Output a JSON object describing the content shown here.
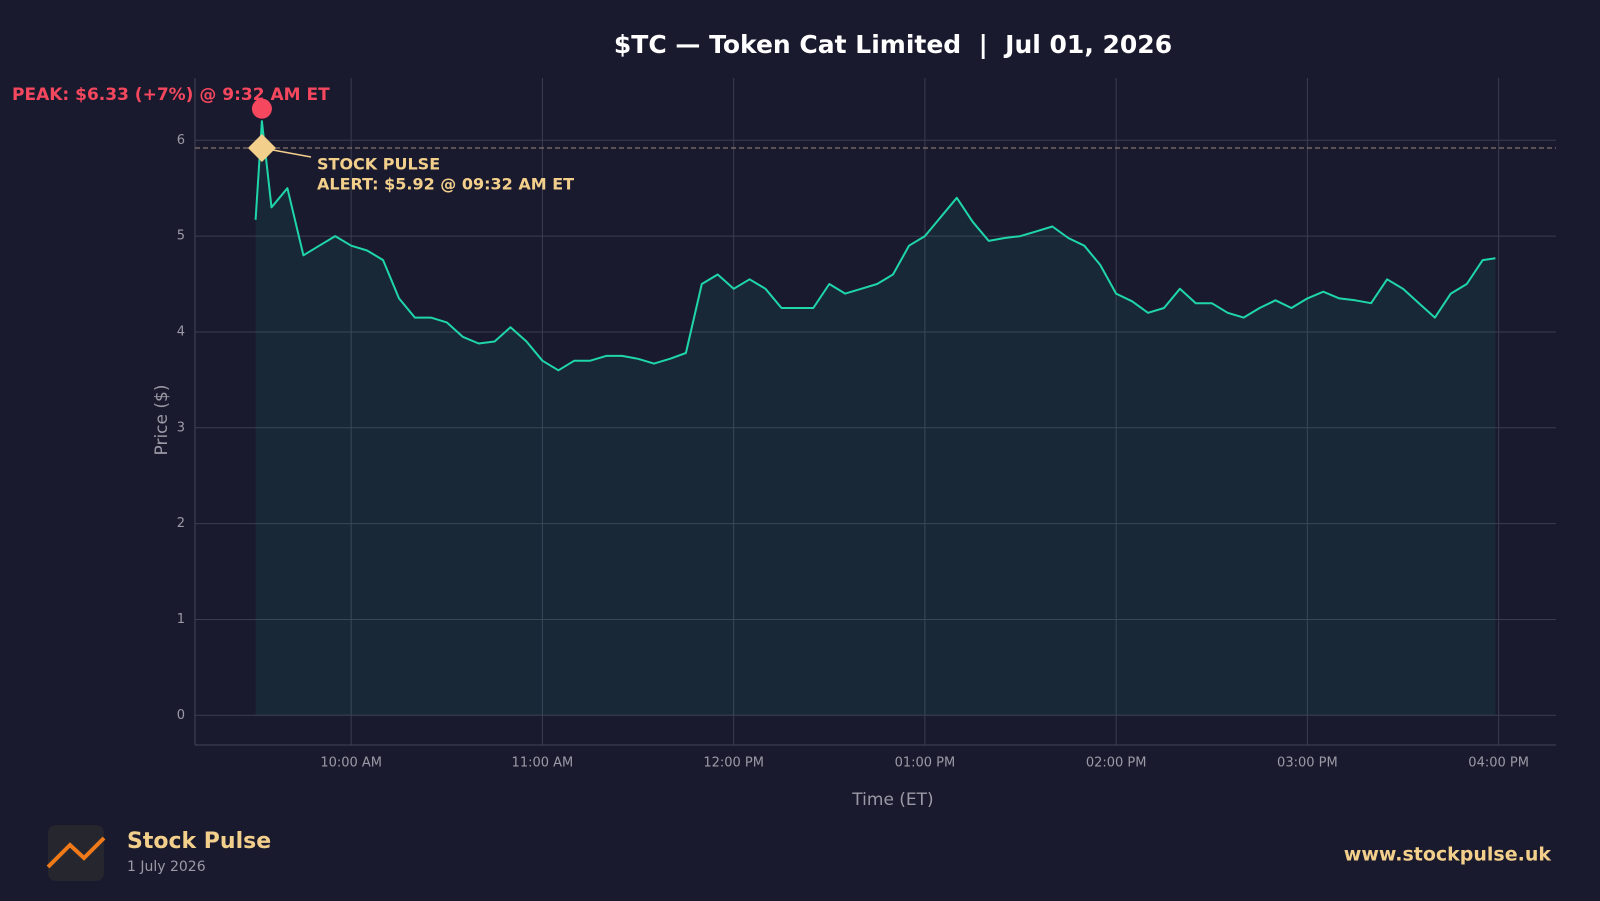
{
  "chart_data": {
    "type": "line",
    "title": "$TC — Token Cat Limited  |  Jul 01, 2026",
    "x_label": "Time (ET)",
    "y_label": "Price ($)",
    "x": [
      "09:30 AM",
      "09:32 AM",
      "09:35 AM",
      "09:40 AM",
      "09:45 AM",
      "09:50 AM",
      "09:55 AM",
      "10:00 AM",
      "10:05 AM",
      "10:10 AM",
      "10:15 AM",
      "10:20 AM",
      "10:25 AM",
      "10:30 AM",
      "10:35 AM",
      "10:40 AM",
      "10:45 AM",
      "10:50 AM",
      "10:55 AM",
      "11:00 AM",
      "11:05 AM",
      "11:10 AM",
      "11:15 AM",
      "11:20 AM",
      "11:25 AM",
      "11:30 AM",
      "11:35 AM",
      "11:40 AM",
      "11:45 AM",
      "11:50 AM",
      "11:55 AM",
      "12:00 PM",
      "12:05 PM",
      "12:10 PM",
      "12:15 PM",
      "12:20 PM",
      "12:25 PM",
      "12:30 PM",
      "12:35 PM",
      "12:40 PM",
      "12:45 PM",
      "12:50 PM",
      "12:55 PM",
      "01:00 PM",
      "01:05 PM",
      "01:10 PM",
      "01:15 PM",
      "01:20 PM",
      "01:25 PM",
      "01:30 PM",
      "01:35 PM",
      "01:40 PM",
      "01:45 PM",
      "01:50 PM",
      "01:55 PM",
      "02:00 PM",
      "02:05 PM",
      "02:10 PM",
      "02:15 PM",
      "02:20 PM",
      "02:25 PM",
      "02:30 PM",
      "02:35 PM",
      "02:40 PM",
      "02:45 PM",
      "02:50 PM",
      "02:55 PM",
      "03:00 PM",
      "03:05 PM",
      "03:10 PM",
      "03:15 PM",
      "03:20 PM",
      "03:25 PM",
      "03:30 PM",
      "03:35 PM",
      "03:40 PM",
      "03:45 PM",
      "03:50 PM",
      "03:55 PM",
      "03:59 PM"
    ],
    "values": [
      5.17,
      6.2,
      5.3,
      5.5,
      4.8,
      4.9,
      5.0,
      4.9,
      4.85,
      4.75,
      4.35,
      4.15,
      4.15,
      4.1,
      3.95,
      3.88,
      3.9,
      4.05,
      3.9,
      3.7,
      3.6,
      3.7,
      3.7,
      3.75,
      3.75,
      3.72,
      3.67,
      3.72,
      3.78,
      4.5,
      4.6,
      4.45,
      4.55,
      4.45,
      4.25,
      4.25,
      4.25,
      4.5,
      4.4,
      4.45,
      4.5,
      4.6,
      4.9,
      5.0,
      5.2,
      5.4,
      5.15,
      4.95,
      4.98,
      5.0,
      5.05,
      5.1,
      4.98,
      4.9,
      4.7,
      4.4,
      4.32,
      4.2,
      4.25,
      4.45,
      4.3,
      4.3,
      4.2,
      4.15,
      4.25,
      4.33,
      4.25,
      4.35,
      4.42,
      4.35,
      4.33,
      4.3,
      4.55,
      4.45,
      4.3,
      4.15,
      4.4,
      4.5,
      4.75,
      4.77
    ],
    "color": "#1fd6a8",
    "xlim": [
      "09:11 AM",
      "04:18 PM"
    ],
    "xticks": [
      "10:00 AM",
      "11:00 AM",
      "12:00 PM",
      "01:00 PM",
      "02:00 PM",
      "03:00 PM",
      "04:00 PM"
    ],
    "ylim": [
      -0.31,
      6.65
    ],
    "yticks": [
      0,
      1,
      2,
      3,
      4,
      5,
      6
    ],
    "grid": true,
    "annotations": [
      {
        "x": "09:32 AM",
        "value": 6.33,
        "text": "PEAK: $6.33 (+7%) @ 9:32 AM ET",
        "color": "#f5475e"
      },
      {
        "x": "09:32 AM",
        "value": 5.92,
        "text": [
          "STOCK PULSE",
          "ALERT: $5.92 @ 09:32 AM ET"
        ],
        "color": "#f3cf8c"
      }
    ]
  },
  "footer": {
    "brand": "Stock Pulse",
    "date": "1 July 2026",
    "url": "www.stockpulse.uk"
  }
}
